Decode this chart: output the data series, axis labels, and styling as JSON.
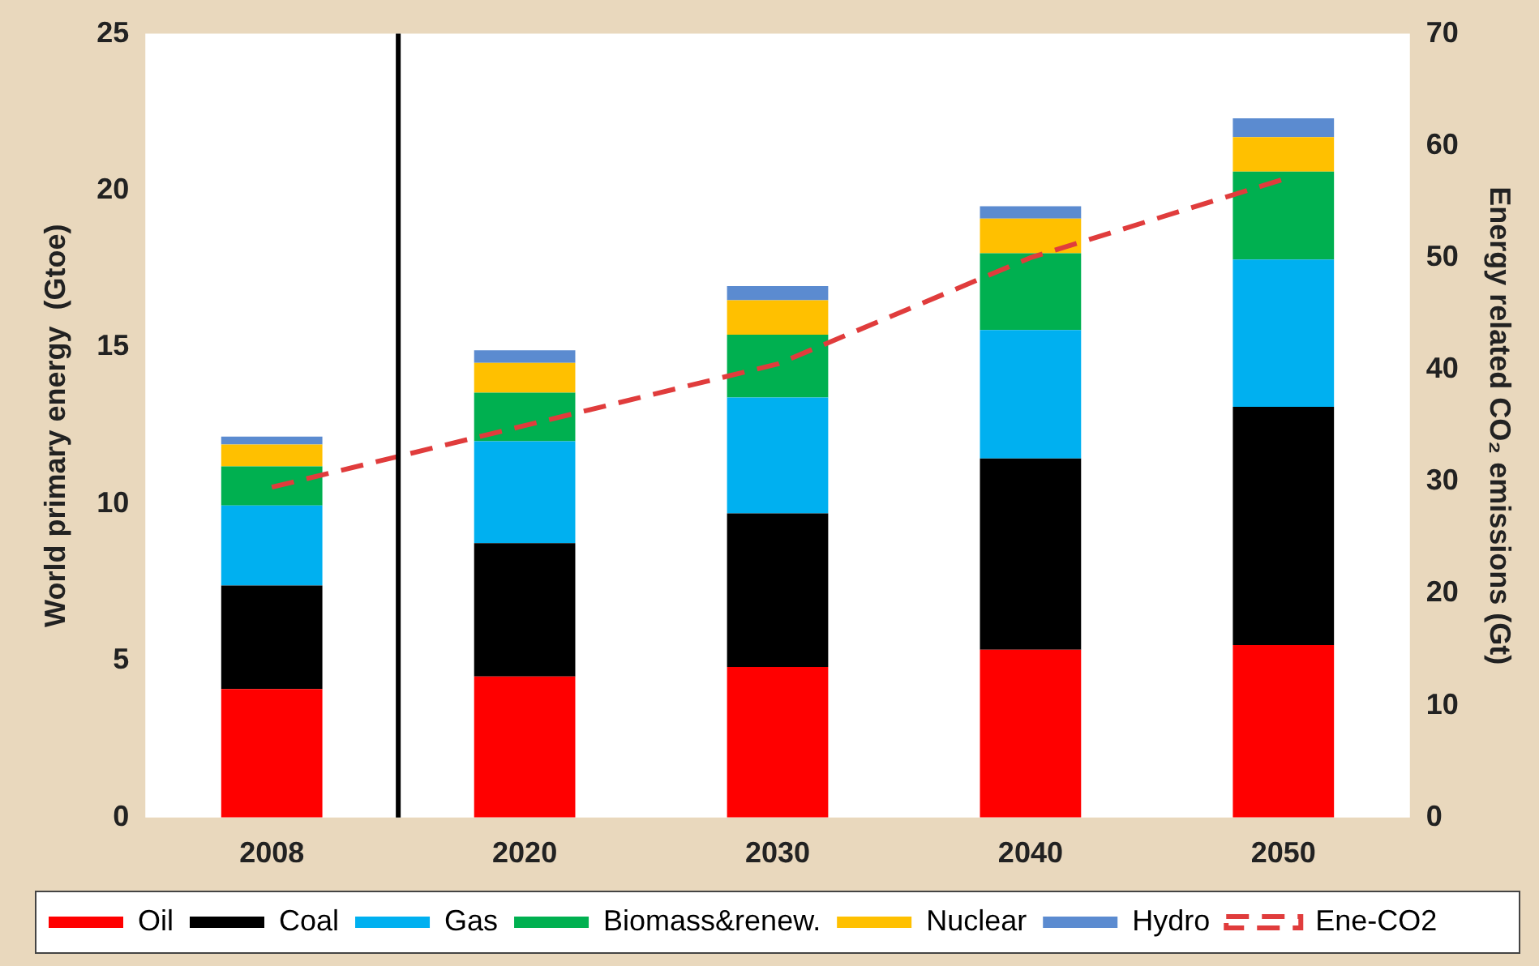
{
  "chart_data": {
    "type": "bar",
    "stacked": true,
    "categories": [
      "2008",
      "2020",
      "2030",
      "2040",
      "2050"
    ],
    "ylabel": "World primary energy  (Gtoe)",
    "y2label": "Energy related CO₂ emissions (Gt)",
    "ylim": [
      0,
      25
    ],
    "yticks": [
      0,
      5,
      10,
      15,
      20,
      25
    ],
    "y2lim": [
      0,
      70
    ],
    "y2ticks": [
      0,
      10,
      20,
      30,
      40,
      50,
      60,
      70
    ],
    "legend": "bottom",
    "grid": false,
    "series": [
      {
        "name": "Oil",
        "color": "#ff0000",
        "values": [
          4.1,
          4.5,
          4.8,
          5.35,
          5.5
        ]
      },
      {
        "name": "Coal",
        "color": "#000000",
        "values": [
          3.3,
          4.25,
          4.9,
          6.1,
          7.6
        ]
      },
      {
        "name": "Gas",
        "color": "#00b0f0",
        "values": [
          2.55,
          3.25,
          3.7,
          4.1,
          4.7
        ]
      },
      {
        "name": "Biomass&renew.",
        "color": "#00b050",
        "values": [
          1.25,
          1.55,
          2.0,
          2.45,
          2.8
        ]
      },
      {
        "name": "Nuclear",
        "color": "#ffc000",
        "values": [
          0.7,
          0.95,
          1.1,
          1.1,
          1.1
        ]
      },
      {
        "name": "Hydro",
        "color": "#5b8bd0",
        "values": [
          0.25,
          0.4,
          0.45,
          0.4,
          0.6
        ]
      },
      {
        "name": "Ene-CO2",
        "type": "line",
        "axis": "y2",
        "line_style": "dashed",
        "color": "#e03c3c",
        "values": [
          29.5,
          35,
          40.5,
          50,
          57
        ]
      }
    ]
  }
}
